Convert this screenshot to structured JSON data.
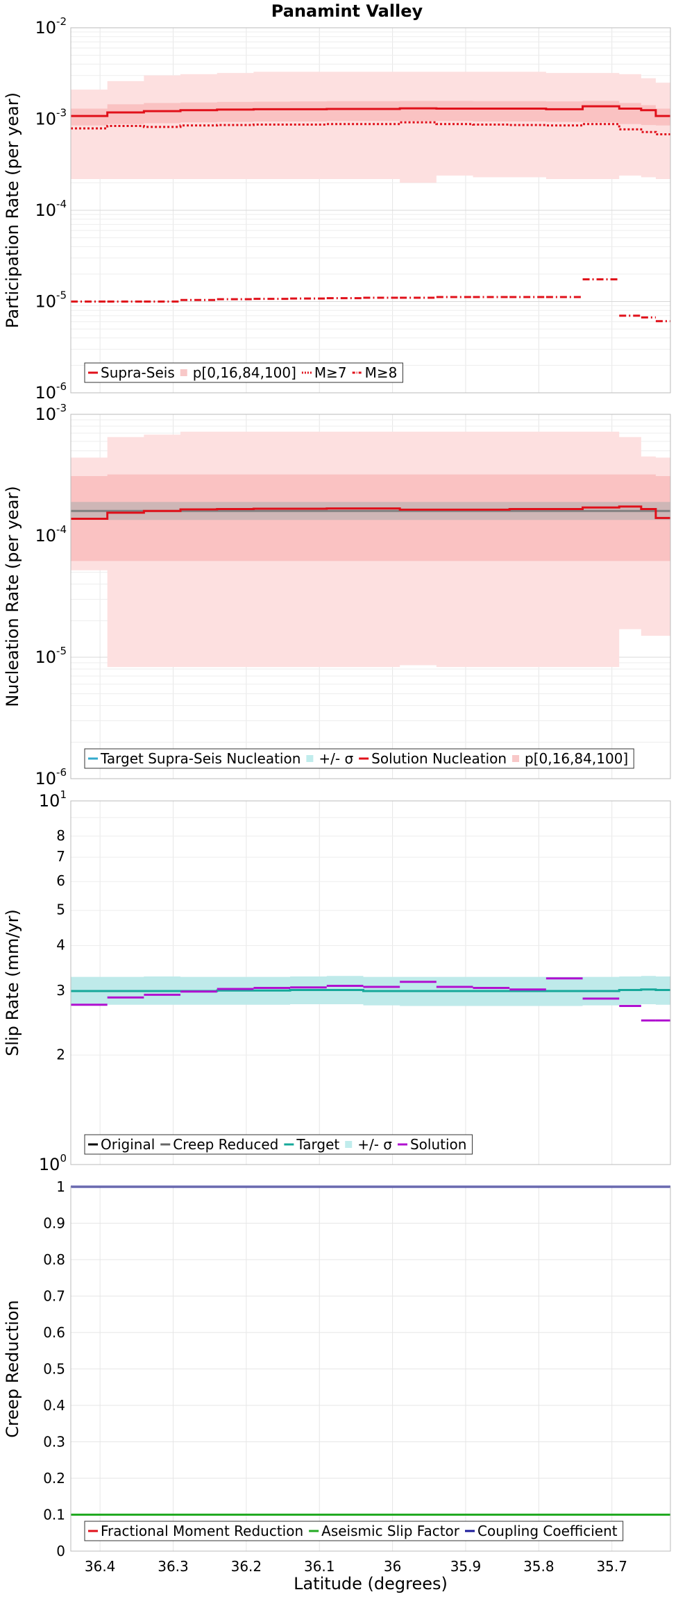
{
  "title": "Panamint Valley",
  "xlabel": "Latitude (degrees)",
  "x_ticks": [
    "36.4",
    "36.3",
    "36.2",
    "36.1",
    "36",
    "35.9",
    "35.8",
    "35.7"
  ],
  "chart_data": [
    {
      "type": "line",
      "panel": "participation",
      "ylabel": "Participation Rate (per year)",
      "yscale": "log",
      "ylim": [
        1e-06,
        0.01
      ],
      "xlim": [
        36.44,
        35.62
      ],
      "x_reversed": true,
      "grid": true,
      "legend_position": "bottom-left",
      "y_tick_labels": [
        {
          "base": "10",
          "exp": "-6"
        },
        {
          "base": "10",
          "exp": "-5"
        },
        {
          "base": "10",
          "exp": "-4"
        },
        {
          "base": "10",
          "exp": "-3"
        },
        {
          "base": "10",
          "exp": "-2"
        }
      ],
      "x_edges": [
        36.44,
        36.39,
        36.34,
        36.29,
        36.24,
        36.19,
        36.14,
        36.09,
        36.04,
        35.99,
        35.94,
        35.89,
        35.84,
        35.79,
        35.74,
        35.69,
        35.66,
        35.64,
        35.62
      ],
      "legend": [
        {
          "label": "Supra-Seis",
          "style": "solid",
          "color": "#e0101a"
        },
        {
          "label": "p[0,16,84,100]",
          "style": "fill",
          "color": "#f8c8c8"
        },
        {
          "label": "M≥7",
          "style": "dotted",
          "color": "#e0101a"
        },
        {
          "label": "M≥8",
          "style": "dashdot",
          "color": "#e0101a"
        }
      ],
      "series": [
        {
          "name": "Supra-Seis",
          "style": "solid",
          "values": [
            0.00108,
            0.00118,
            0.00122,
            0.00125,
            0.00127,
            0.00128,
            0.00128,
            0.00129,
            0.00129,
            0.00131,
            0.0013,
            0.0013,
            0.0013,
            0.00128,
            0.00138,
            0.0013,
            0.00125,
            0.00108
          ]
        },
        {
          "name": "M≥7",
          "style": "dotted",
          "values": [
            0.00079,
            0.00084,
            0.00082,
            0.00085,
            0.00086,
            0.00087,
            0.00087,
            0.00088,
            0.00088,
            0.00092,
            0.00088,
            0.00087,
            0.00086,
            0.00085,
            0.00088,
            0.00077,
            0.00072,
            0.00068
          ]
        },
        {
          "name": "M≥8",
          "style": "dashdot",
          "values": [
            1e-05,
            1e-05,
            1e-05,
            1.04e-05,
            1.06e-05,
            1.07e-05,
            1.08e-05,
            1.09e-05,
            1.1e-05,
            1.1e-05,
            1.12e-05,
            1.12e-05,
            1.12e-05,
            1.12e-05,
            1.75e-05,
            7e-06,
            6.7e-06,
            6.1e-06
          ]
        }
      ],
      "bands": [
        {
          "name": "p0-100",
          "lower": [
            0.00022,
            0.00022,
            0.00022,
            0.00022,
            0.00022,
            0.00022,
            0.00022,
            0.00022,
            0.00022,
            0.0002,
            0.00024,
            0.00023,
            0.00023,
            0.00022,
            0.00022,
            0.00024,
            0.00023,
            0.00022
          ],
          "upper": [
            0.0021,
            0.0026,
            0.003,
            0.0031,
            0.0032,
            0.0033,
            0.0033,
            0.0033,
            0.0033,
            0.0033,
            0.0033,
            0.0033,
            0.0033,
            0.0032,
            0.0032,
            0.0031,
            0.0028,
            0.0025
          ]
        },
        {
          "name": "p16-84",
          "lower": [
            0.00085,
            0.00088,
            0.0009,
            0.00092,
            0.00093,
            0.00094,
            0.00094,
            0.00095,
            0.00095,
            0.00095,
            0.00095,
            0.00094,
            0.00094,
            0.00093,
            0.00092,
            0.00088,
            0.00086,
            0.00085
          ],
          "upper": [
            0.0013,
            0.00145,
            0.0015,
            0.00152,
            0.00154,
            0.00155,
            0.00156,
            0.00157,
            0.00157,
            0.00158,
            0.00158,
            0.00157,
            0.00157,
            0.00156,
            0.00158,
            0.0015,
            0.00142,
            0.0013
          ]
        }
      ]
    },
    {
      "type": "line",
      "panel": "nucleation",
      "ylabel": "Nucleation Rate (per year)",
      "yscale": "log",
      "ylim": [
        1e-06,
        0.001
      ],
      "xlim": [
        36.44,
        35.62
      ],
      "x_reversed": true,
      "grid": true,
      "legend_position": "bottom-left",
      "y_tick_labels": [
        {
          "base": "10",
          "exp": "-6"
        },
        {
          "base": "10",
          "exp": "-5"
        },
        {
          "base": "10",
          "exp": "-4"
        },
        {
          "base": "10",
          "exp": "-3"
        }
      ],
      "x_edges": [
        36.44,
        36.39,
        36.34,
        36.29,
        36.24,
        36.19,
        36.14,
        36.09,
        36.04,
        35.99,
        35.94,
        35.89,
        35.84,
        35.79,
        35.74,
        35.69,
        35.66,
        35.64,
        35.62
      ],
      "legend": [
        {
          "label": "Target Supra-Seis Nucleation",
          "style": "solid",
          "color": "#33aacc"
        },
        {
          "label": "+/- σ",
          "style": "fill",
          "color": "#c0ecec"
        },
        {
          "label": "Solution Nucleation",
          "style": "solid",
          "color": "#e0101a"
        },
        {
          "label": "p[0,16,84,100]",
          "style": "fill",
          "color": "#f8c8c8"
        }
      ],
      "series": [
        {
          "name": "Target",
          "style": "solid",
          "color": "#808080",
          "values": [
            0.00016,
            0.00016,
            0.00016,
            0.00016,
            0.00016,
            0.00016,
            0.00016,
            0.00016,
            0.00016,
            0.00016,
            0.00016,
            0.00016,
            0.00016,
            0.00016,
            0.00016,
            0.00016,
            0.00016,
            0.00016
          ]
        },
        {
          "name": "Solution Nucleation",
          "style": "solid",
          "color": "#e0101a",
          "values": [
            0.000138,
            0.000155,
            0.00016,
            0.000165,
            0.000166,
            0.000167,
            0.000167,
            0.000168,
            0.000168,
            0.000164,
            0.000164,
            0.000164,
            0.000166,
            0.000166,
            0.000171,
            0.000174,
            0.000166,
            0.00014
          ]
        }
      ],
      "bands": [
        {
          "name": "p0-100",
          "lower": [
            5.2e-05,
            8.3e-06,
            8.3e-06,
            8.3e-06,
            8.3e-06,
            8.3e-06,
            8.3e-06,
            8.3e-06,
            8.3e-06,
            8.6e-06,
            8.3e-06,
            8.3e-06,
            8.3e-06,
            8.3e-06,
            8.3e-06,
            1.7e-05,
            1.5e-05,
            1.5e-05
          ],
          "upper": [
            0.00044,
            0.00065,
            0.00068,
            0.00072,
            0.00072,
            0.00072,
            0.00072,
            0.00072,
            0.00072,
            0.00072,
            0.00072,
            0.00072,
            0.00072,
            0.00072,
            0.00072,
            0.00065,
            0.00045,
            0.00044
          ]
        },
        {
          "name": "p16-84",
          "lower": [
            6.2e-05,
            6.2e-05,
            6.2e-05,
            6.2e-05,
            6.2e-05,
            6.2e-05,
            6.2e-05,
            6.2e-05,
            6.2e-05,
            6.2e-05,
            6.2e-05,
            6.2e-05,
            6.2e-05,
            6.2e-05,
            6.2e-05,
            6.2e-05,
            6.2e-05,
            6.2e-05
          ],
          "upper": [
            0.00031,
            0.00032,
            0.00032,
            0.00032,
            0.00032,
            0.00032,
            0.00032,
            0.00032,
            0.00032,
            0.00032,
            0.00032,
            0.00032,
            0.00032,
            0.00032,
            0.00032,
            0.00032,
            0.00032,
            0.00031
          ]
        },
        {
          "name": "sigma",
          "lower": [
            0.000135,
            0.000135,
            0.000135,
            0.000135,
            0.000135,
            0.000135,
            0.000135,
            0.000135,
            0.000135,
            0.000135,
            0.000135,
            0.000135,
            0.000135,
            0.000135,
            0.000135,
            0.000135,
            0.000135,
            0.000135
          ],
          "upper": [
            0.00019,
            0.00019,
            0.00019,
            0.00019,
            0.00019,
            0.00019,
            0.00019,
            0.00019,
            0.00019,
            0.00019,
            0.00019,
            0.00019,
            0.00019,
            0.00019,
            0.00019,
            0.00019,
            0.00019,
            0.00019
          ]
        }
      ]
    },
    {
      "type": "line",
      "panel": "slip",
      "ylabel": "Slip Rate (mm/yr)",
      "yscale": "log",
      "ylim": [
        1,
        10
      ],
      "xlim": [
        36.44,
        35.62
      ],
      "x_reversed": true,
      "grid": true,
      "legend_position": "bottom-left",
      "y_tick_labels": [
        {
          "base": "10",
          "exp": "0"
        },
        {
          "base": "10",
          "exp": "1"
        }
      ],
      "y_minor_tick_labels": [
        "2",
        "3",
        "4",
        "5",
        "6",
        "7",
        "8"
      ],
      "x_edges": [
        36.44,
        36.39,
        36.34,
        36.29,
        36.24,
        36.19,
        36.14,
        36.09,
        36.04,
        35.99,
        35.94,
        35.89,
        35.84,
        35.79,
        35.74,
        35.69,
        35.66,
        35.64,
        35.62
      ],
      "legend": [
        {
          "label": "Original",
          "style": "solid",
          "color": "#000000"
        },
        {
          "label": "Creep Reduced",
          "style": "solid",
          "color": "#666666"
        },
        {
          "label": "Target",
          "style": "solid",
          "color": "#16a89a"
        },
        {
          "label": "+/- σ",
          "style": "fill",
          "color": "#c0ecec"
        },
        {
          "label": "Solution",
          "style": "solid",
          "color": "#b010d0"
        }
      ],
      "series": [
        {
          "name": "Target",
          "style": "solid",
          "color": "#16a89a",
          "values": [
            3.0,
            3.0,
            3.0,
            3.0,
            3.01,
            3.01,
            3.02,
            3.02,
            3.0,
            3.0,
            3.0,
            3.0,
            3.0,
            3.0,
            3.0,
            3.02,
            3.03,
            3.02
          ]
        },
        {
          "name": "Solution",
          "style": "solid",
          "color": "#b010d0",
          "values": [
            2.75,
            2.88,
            2.93,
            2.99,
            3.04,
            3.06,
            3.07,
            3.1,
            3.08,
            3.18,
            3.08,
            3.06,
            3.03,
            3.25,
            2.86,
            2.73,
            2.49,
            2.49
          ]
        }
      ],
      "bands": [
        {
          "name": "sigma",
          "lower": [
            2.75,
            2.75,
            2.75,
            2.75,
            2.75,
            2.75,
            2.76,
            2.76,
            2.74,
            2.73,
            2.73,
            2.73,
            2.73,
            2.73,
            2.74,
            2.75,
            2.76,
            2.75
          ],
          "upper": [
            3.28,
            3.28,
            3.29,
            3.28,
            3.28,
            3.28,
            3.29,
            3.3,
            3.28,
            3.28,
            3.28,
            3.28,
            3.28,
            3.28,
            3.28,
            3.29,
            3.3,
            3.29
          ]
        }
      ]
    },
    {
      "type": "line",
      "panel": "creep",
      "ylabel": "Creep Reduction",
      "yscale": "linear",
      "ylim": [
        0,
        1
      ],
      "xlim": [
        36.44,
        35.62
      ],
      "x_reversed": true,
      "grid": true,
      "legend_position": "bottom-left",
      "y_ticks": [
        0,
        0.1,
        0.2,
        0.3,
        0.4,
        0.5,
        0.6,
        0.7,
        0.8,
        0.9,
        1
      ],
      "y_tick_labels": [
        "0",
        "0.1",
        "0.2",
        "0.3",
        "0.4",
        "0.5",
        "0.6",
        "0.7",
        "0.8",
        "0.9",
        "1"
      ],
      "legend": [
        {
          "label": "Fractional Moment Reduction",
          "style": "solid",
          "color": "#e0101a"
        },
        {
          "label": "Aseismic Slip Factor",
          "style": "solid",
          "color": "#22aa22"
        },
        {
          "label": "Coupling Coefficient",
          "style": "solid",
          "color": "#1a1a99"
        }
      ],
      "series": [
        {
          "name": "Aseismic Slip Factor",
          "style": "solid",
          "color": "#22aa22",
          "x": [
            36.44,
            35.62
          ],
          "values": [
            0.1,
            0.1
          ]
        },
        {
          "name": "Coupling Coefficient",
          "style": "solid",
          "color": "#1a1a99",
          "x": [
            36.44,
            35.62
          ],
          "values": [
            1,
            1
          ]
        }
      ]
    }
  ]
}
